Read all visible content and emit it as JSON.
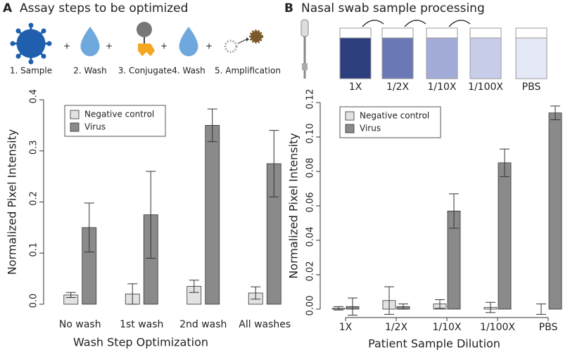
{
  "panels": [
    {
      "letter": "A",
      "title": "Assay steps to be optimized",
      "steps": [
        "1. Sample",
        "2. Wash",
        "3. Conjugate",
        "4. Wash",
        "5. Amplification"
      ]
    },
    {
      "letter": "B",
      "title": "Nasal swab sample processing",
      "steps": [
        "1X",
        "1/2X",
        "1/10X",
        "1/100X",
        "PBS"
      ]
    }
  ],
  "chart_data": [
    {
      "type": "bar",
      "xlabel": "Wash Step Optimization",
      "ylabel": "Normalized Pixel Intensity",
      "categories": [
        "No wash",
        "1st wash",
        "2nd wash",
        "All washes"
      ],
      "series": [
        {
          "name": "Negative control",
          "color": "#e2e2e2",
          "values": [
            0.018,
            0.02,
            0.035,
            0.022
          ],
          "errors": [
            0.005,
            0.02,
            0.012,
            0.012
          ]
        },
        {
          "name": "Virus",
          "color": "#8a8a8a",
          "values": [
            0.15,
            0.175,
            0.35,
            0.275
          ],
          "errors": [
            0.048,
            0.085,
            0.032,
            0.065
          ]
        }
      ],
      "ylim": [
        0,
        0.4
      ],
      "yticks": [
        {
          "value": 0,
          "label": "0.0"
        },
        0.1,
        0.2,
        0.3,
        0.4
      ],
      "legend": "upper left",
      "x_axis_line": false
    },
    {
      "type": "bar",
      "xlabel": "Patient Sample Dilution",
      "ylabel": "Normalized Pixel Intensity",
      "categories": [
        "1X",
        "1/2X",
        "1/10X",
        "1/100X",
        "PBS"
      ],
      "series": [
        {
          "name": "Negative control",
          "color": "#e2e2e2",
          "values": [
            0.0005,
            0.005,
            0.003,
            0.001,
            0.0
          ],
          "errors": [
            0.001,
            0.008,
            0.0025,
            0.003,
            0.003
          ]
        },
        {
          "name": "Virus",
          "color": "#8a8a8a",
          "values": [
            0.0015,
            0.0015,
            0.057,
            0.085,
            0.114
          ],
          "errors": [
            0.005,
            0.0015,
            0.01,
            0.008,
            0.004
          ]
        }
      ],
      "ylim": [
        0,
        0.12
      ],
      "yticks": [
        {
          "value": 0,
          "label": "0.00"
        },
        0.02,
        0.04,
        0.06,
        0.08,
        {
          "value": 0.1,
          "label": "0.10"
        },
        0.12
      ],
      "legend": "upper left",
      "x_axis_line": true
    }
  ]
}
